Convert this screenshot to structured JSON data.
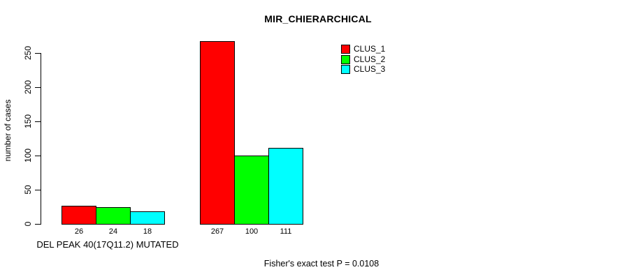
{
  "chart_data": {
    "type": "bar",
    "title": "MIR_CHIERARCHICAL",
    "ylabel": "number of cases",
    "xlabel": "DEL PEAK 40(17Q11.2) MUTATED",
    "annotation": "Fisher's exact test P = 0.0108",
    "ylim": [
      0,
      250
    ],
    "yticks": [
      0,
      50,
      100,
      150,
      200,
      250
    ],
    "grid": false,
    "legend_position": "top-right",
    "background_color": "#ffffff",
    "text_color": "#000000",
    "bar_border_color": "#000000",
    "groups": [
      {
        "label": "DEL PEAK 40(17Q11.2) MUTATED"
      },
      {
        "label": ""
      }
    ],
    "series": [
      {
        "name": "CLUS_1",
        "color": "#ff0000",
        "values": [
          26,
          267
        ]
      },
      {
        "name": "CLUS_2",
        "color": "#00ff00",
        "values": [
          24,
          100
        ]
      },
      {
        "name": "CLUS_3",
        "color": "#00ffff",
        "values": [
          18,
          111
        ]
      }
    ],
    "value_labels_shown": true
  }
}
